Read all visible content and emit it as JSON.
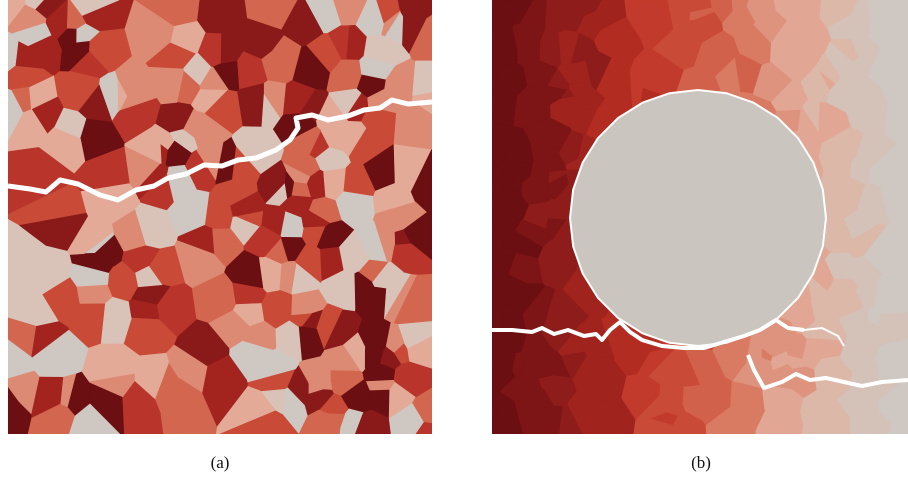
{
  "captions": {
    "a": "(a)",
    "b": "(b)"
  },
  "colors": {
    "palette": [
      "#6b0f12",
      "#8a1a1a",
      "#a3241f",
      "#b9342a",
      "#c94a36",
      "#d3664f",
      "#dd8a74",
      "#e3aa98",
      "#d9c3b8",
      "#cfc7c1"
    ],
    "crack": "#ffffff",
    "inclusion": "#cbc5bf"
  }
}
